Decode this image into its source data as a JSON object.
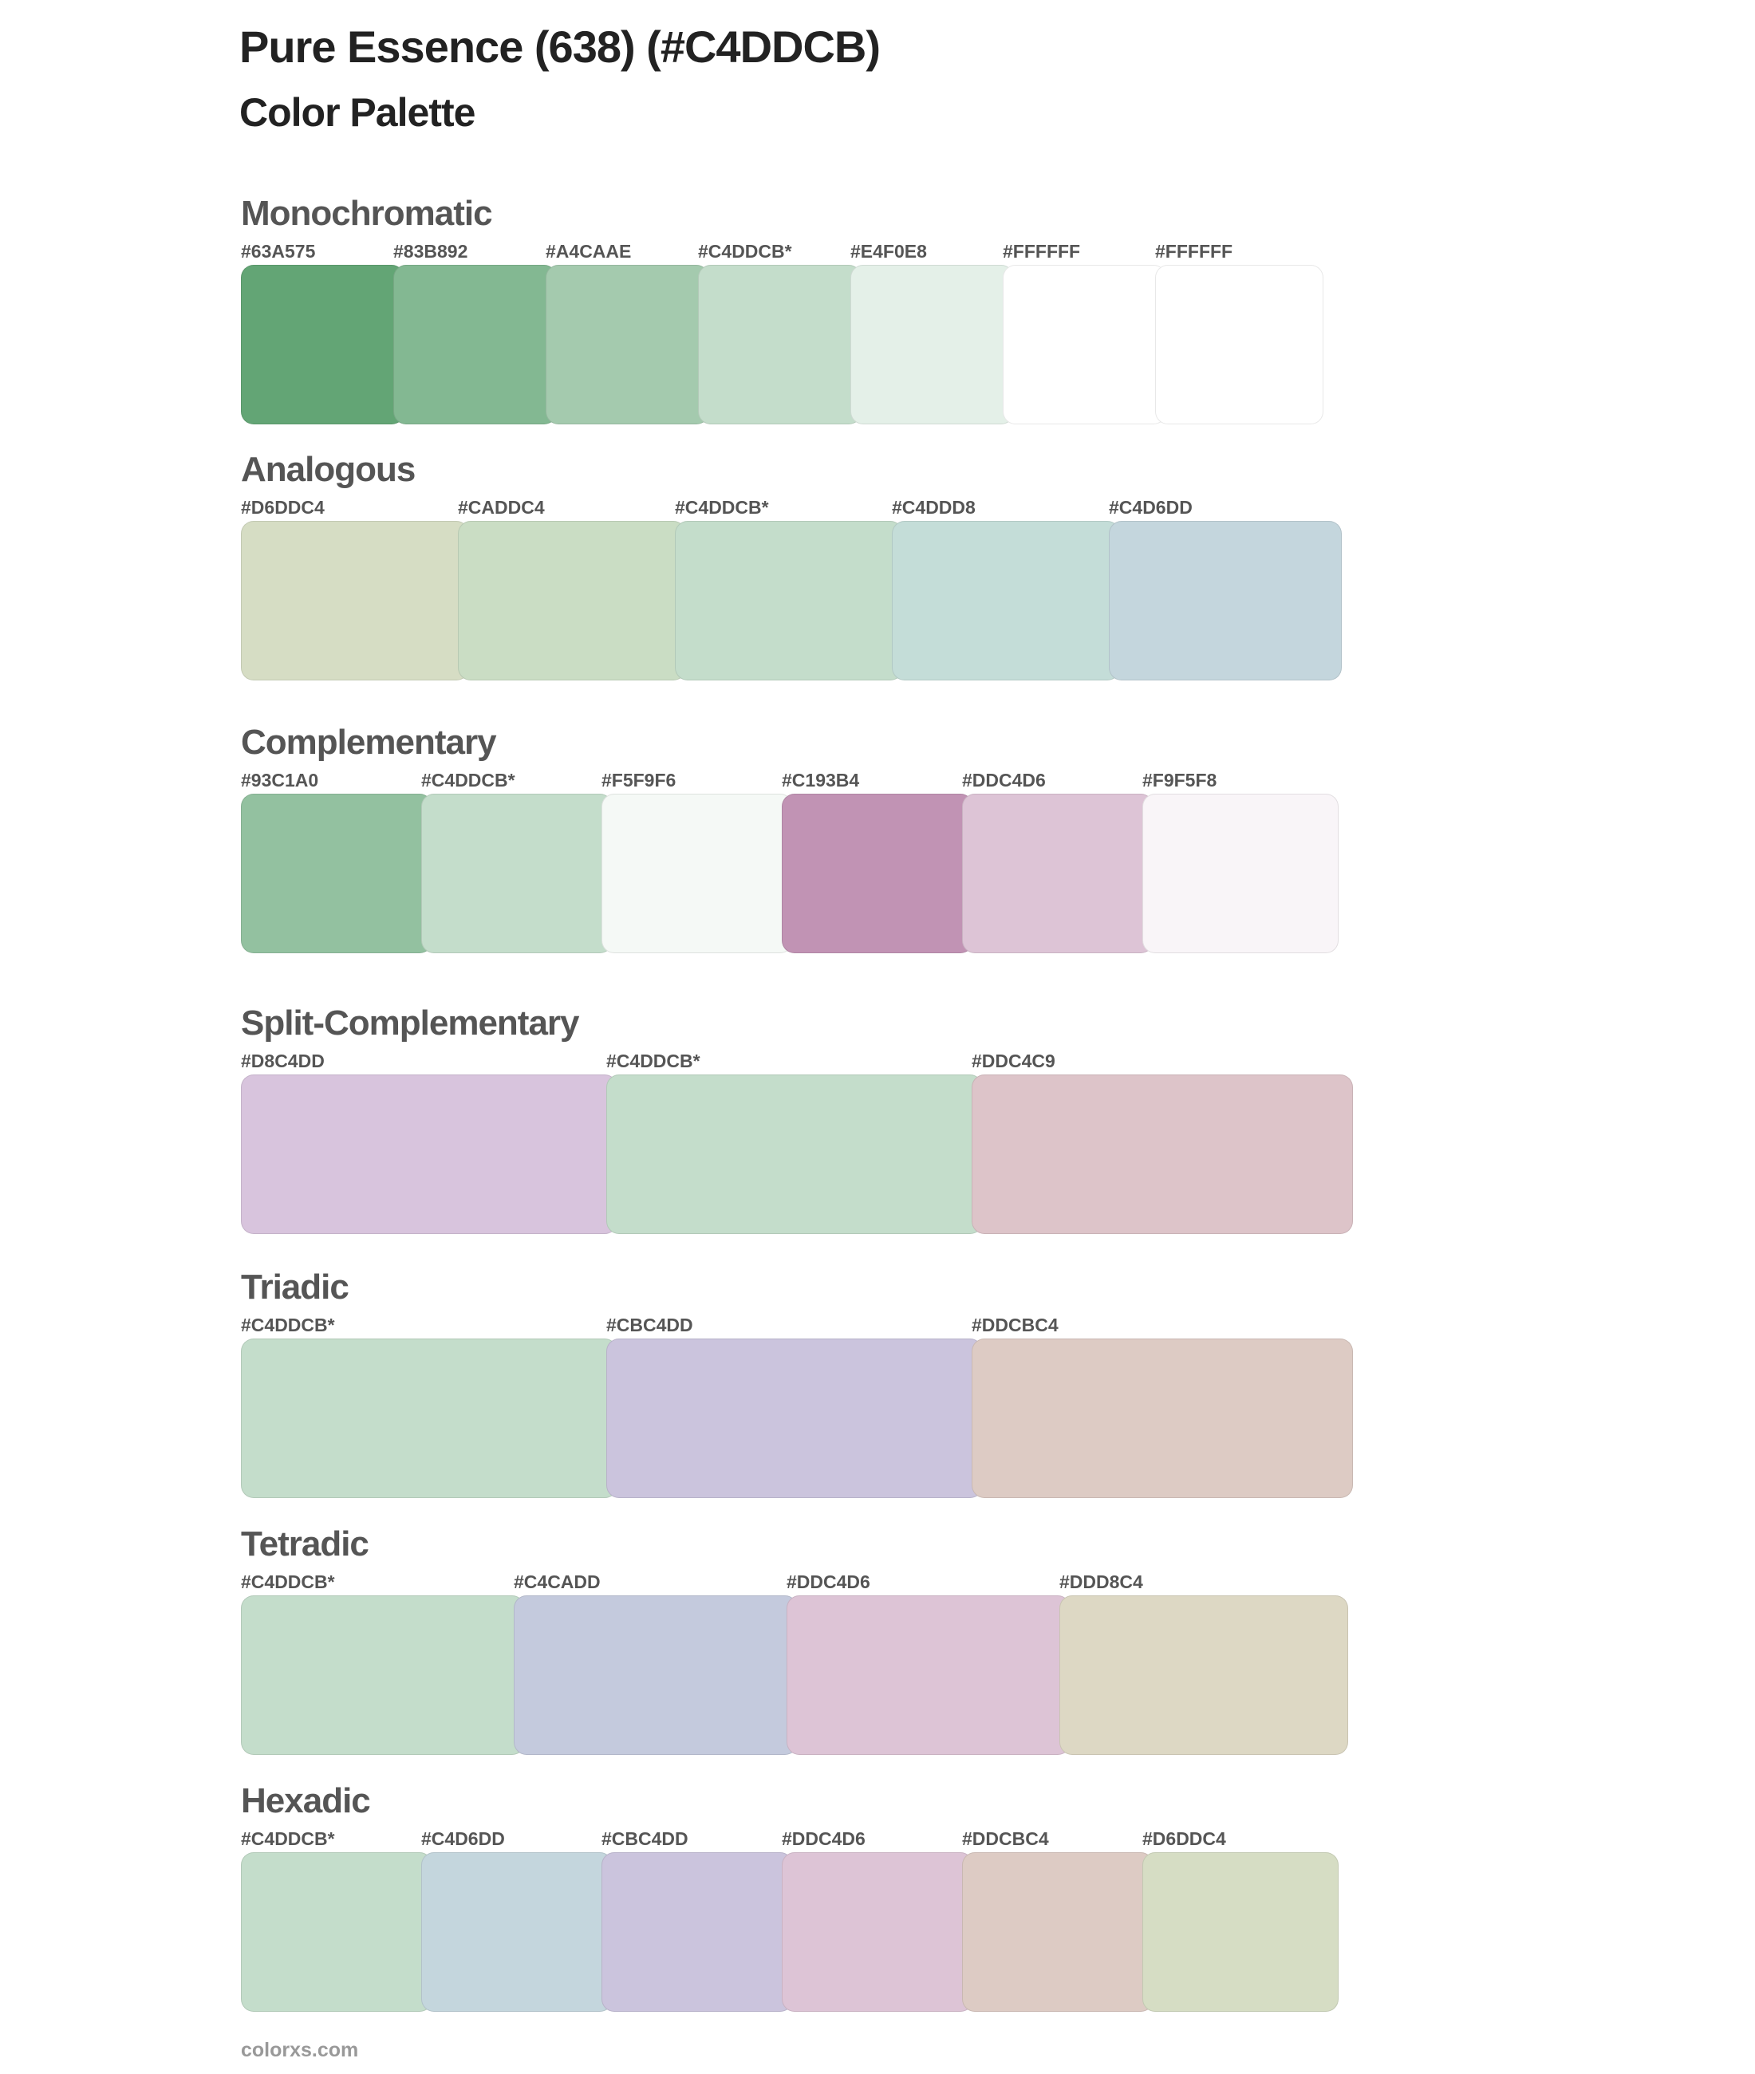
{
  "header": {
    "title": "Pure Essence (638) (#C4DDCB)",
    "subtitle": "Color Palette"
  },
  "sections": [
    {
      "name": "Monochromatic",
      "colors": [
        "#63A575",
        "#83B892",
        "#A4CAAE",
        "#C4DDCB",
        "#E4F0E8",
        "#FFFFFF",
        "#FFFFFF"
      ],
      "labels": [
        "#63A575",
        "#83B892",
        "#A4CAAE",
        "#C4DDCB*",
        "#E4F0E8",
        "#FFFFFF",
        "#FFFFFF"
      ]
    },
    {
      "name": "Analogous",
      "colors": [
        "#D6DDC4",
        "#CADDC4",
        "#C4DDCB",
        "#C4DDD8",
        "#C4D6DD"
      ],
      "labels": [
        "#D6DDC4",
        "#CADDC4",
        "#C4DDCB*",
        "#C4DDD8",
        "#C4D6DD"
      ]
    },
    {
      "name": "Complementary",
      "colors": [
        "#93C1A0",
        "#C4DDCB",
        "#F5F9F6",
        "#C193B4",
        "#DDC4D6",
        "#F9F5F8"
      ],
      "labels": [
        "#93C1A0",
        "#C4DDCB*",
        "#F5F9F6",
        "#C193B4",
        "#DDC4D6",
        "#F9F5F8"
      ]
    },
    {
      "name": "Split-Complementary",
      "colors": [
        "#D8C4DD",
        "#C4DDCB",
        "#DDC4C9"
      ],
      "labels": [
        "#D8C4DD",
        "#C4DDCB*",
        "#DDC4C9"
      ]
    },
    {
      "name": "Triadic",
      "colors": [
        "#C4DDCB",
        "#CBC4DD",
        "#DDCBC4"
      ],
      "labels": [
        "#C4DDCB*",
        "#CBC4DD",
        "#DDCBC4"
      ]
    },
    {
      "name": "Tetradic",
      "colors": [
        "#C4DDCB",
        "#C4CADD",
        "#DDC4D6",
        "#DDD8C4"
      ],
      "labels": [
        "#C4DDCB*",
        "#C4CADD",
        "#DDC4D6",
        "#DDD8C4"
      ]
    },
    {
      "name": "Hexadic",
      "colors": [
        "#C4DDCB",
        "#C4D6DD",
        "#CBC4DD",
        "#DDC4D6",
        "#DDCBC4",
        "#D6DDC4"
      ],
      "labels": [
        "#C4DDCB*",
        "#C4D6DD",
        "#CBC4DD",
        "#DDC4D6",
        "#DDCBC4",
        "#D6DDC4"
      ]
    }
  ],
  "footer": {
    "text": "colorxs.com"
  }
}
